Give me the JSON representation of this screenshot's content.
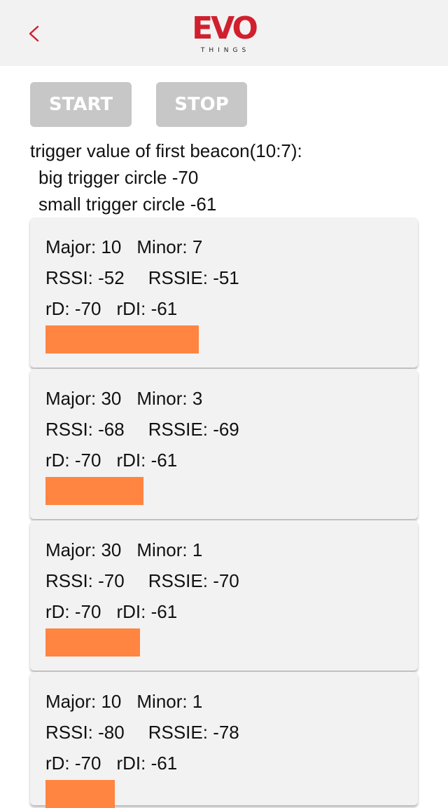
{
  "header": {
    "back_icon": "chevron-left-icon",
    "accent_color": "#d0202e",
    "logo_main": "EVO",
    "logo_sub": "THINGS"
  },
  "controls": {
    "start_label": "START",
    "stop_label": "STOP"
  },
  "info": {
    "line1": "trigger value of first beacon(10:7):",
    "line2": "big trigger circle -70",
    "line3": "small trigger circle -61"
  },
  "bar_color": "#ff8541",
  "beacons": [
    {
      "major": "Major: 10",
      "minor": "Minor: 7",
      "rssi": "RSSI: -52",
      "rssie": "RSSIE: -51",
      "rd": "rD: -70",
      "rdi": "rDI: -61",
      "bar_fraction": 0.83
    },
    {
      "major": "Major: 30",
      "minor": "Minor: 3",
      "rssi": "RSSI: -68",
      "rssie": "RSSIE: -69",
      "rd": "rD: -70",
      "rdi": "rDI: -61",
      "bar_fraction": 0.53
    },
    {
      "major": "Major: 30",
      "minor": "Minor: 1",
      "rssi": "RSSI: -70",
      "rssie": "RSSIE: -70",
      "rd": "rD: -70",
      "rdi": "rDI: -61",
      "bar_fraction": 0.51
    },
    {
      "major": "Major: 10",
      "minor": "Minor: 1",
      "rssi": "RSSI: -80",
      "rssie": "RSSIE: -78",
      "rd": "rD: -70",
      "rdi": "rDI: -61",
      "bar_fraction": 0.375
    }
  ]
}
